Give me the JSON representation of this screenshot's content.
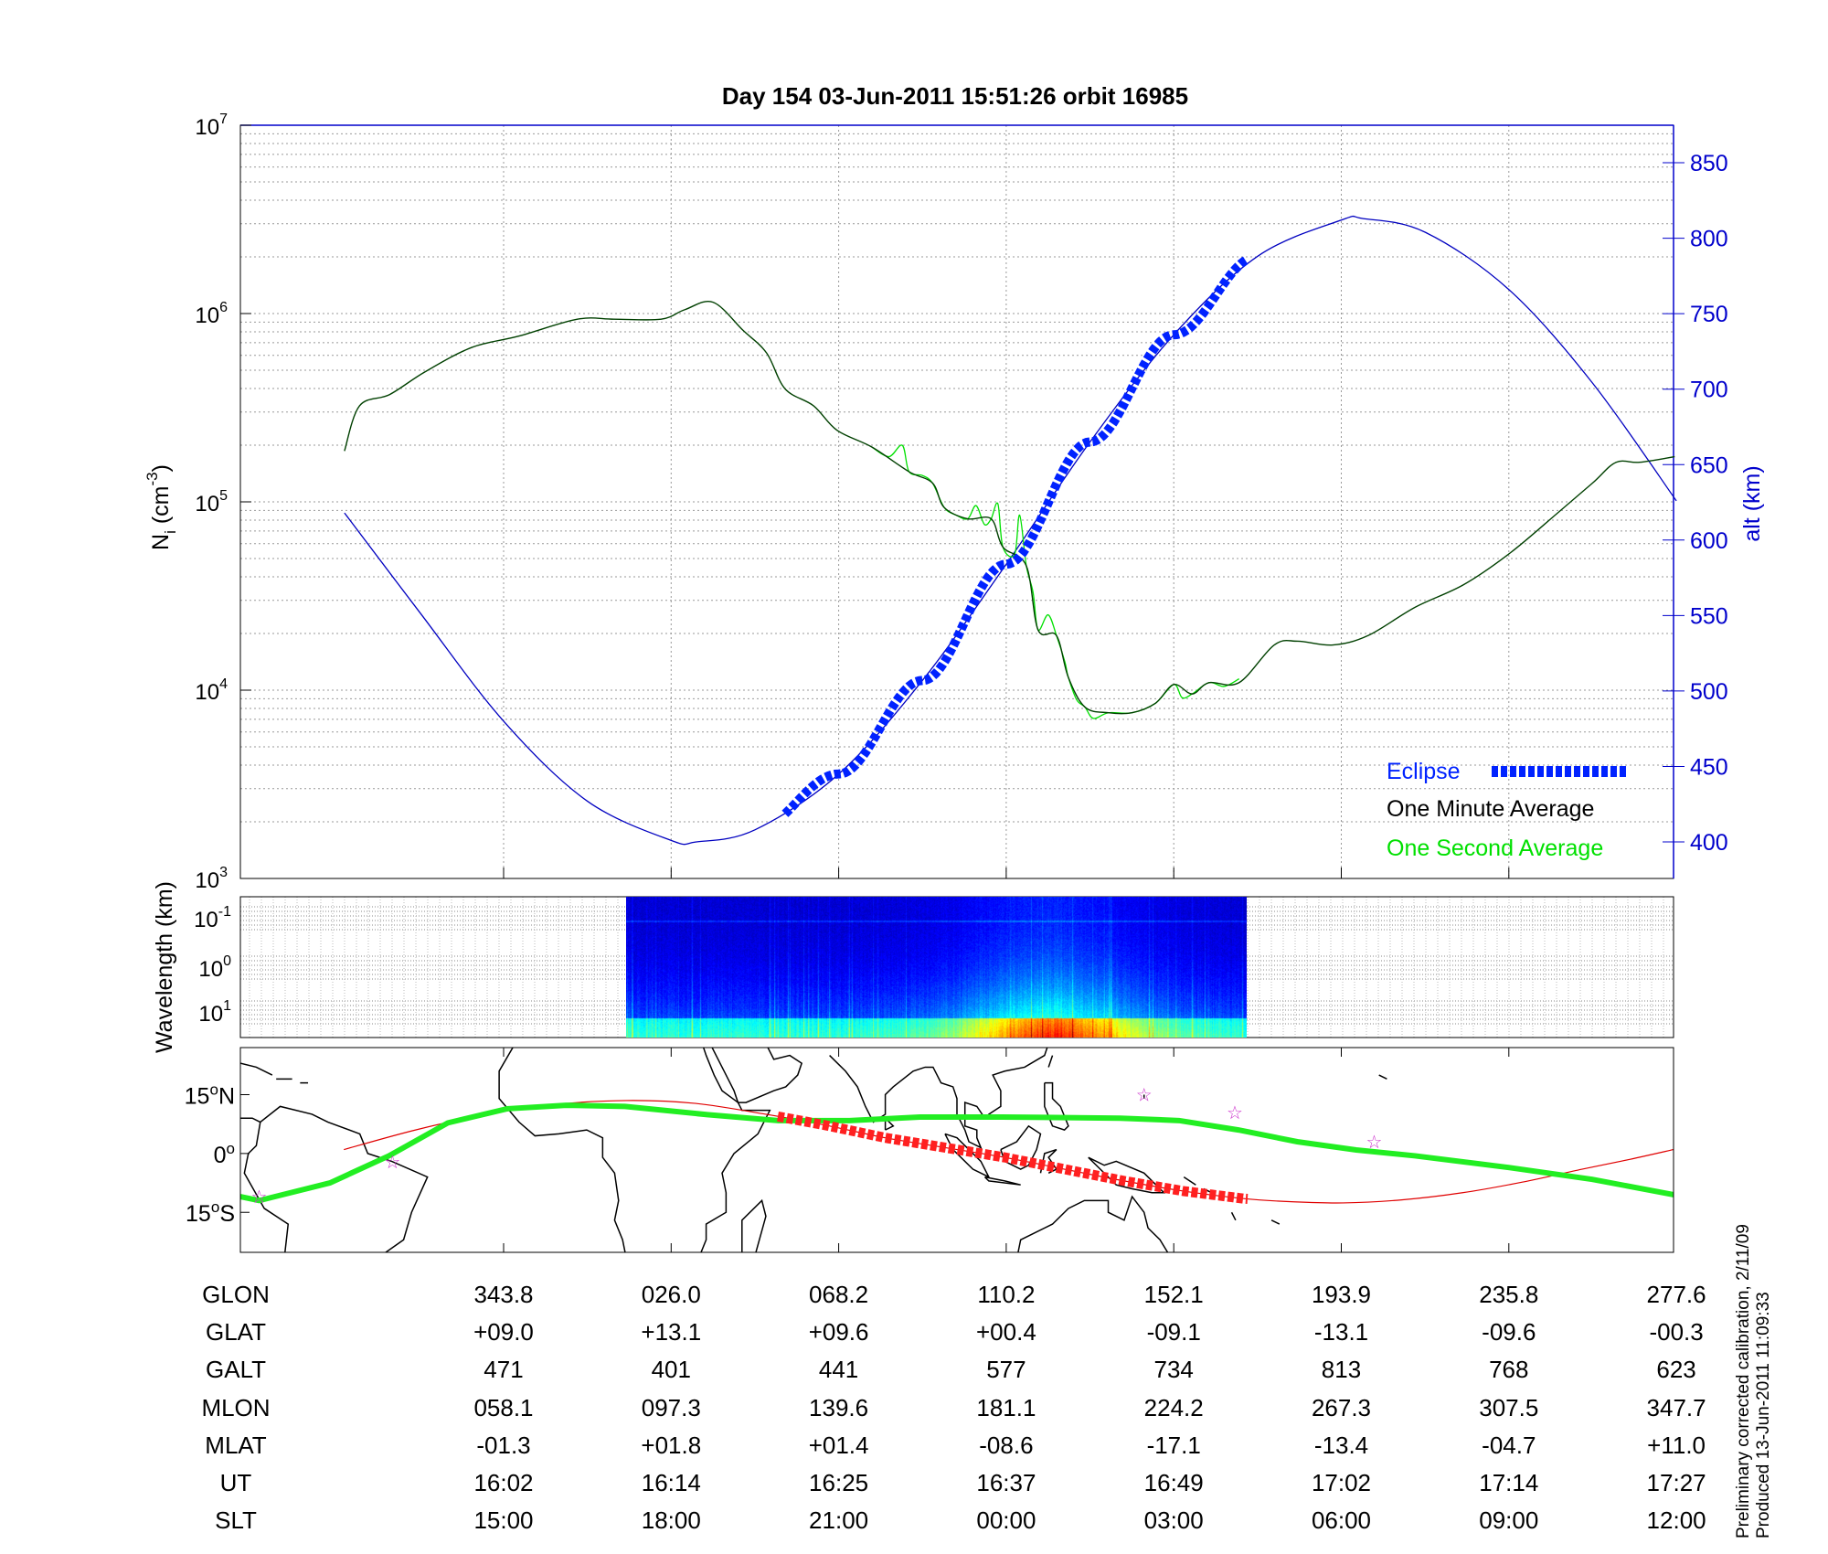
{
  "title": "Day 154  03-Jun-2011 15:51:26   orbit 16985",
  "footnote": {
    "line1": "Preliminary corrected calibration, 2/11/09",
    "line2": "Produced 13-Jun-2011 11:09:33"
  },
  "colors": {
    "one_minute": "#004000",
    "one_second": "#00e000",
    "altitude": "#0000c0",
    "eclipse": "#0022ff",
    "track": "#22ee22",
    "mag_equator": "#e00000",
    "eclipse_track": "#ff2020",
    "stars": "#cc33cc"
  },
  "chart_data": [
    {
      "type": "line",
      "name": "ion-density-altitude",
      "x_unit": "table column index (0 = first column of the GLON/UT table)",
      "xlim": [
        -1.57,
        7.0
      ],
      "ylabel": {
        "main": "N",
        "sub": "i",
        "unit_pre": " (cm",
        "unit_exp": "-3",
        "unit_post": ")"
      },
      "y_scale": "log",
      "ylim": [
        1000,
        10000000
      ],
      "y_ticks": [
        {
          "base": "10",
          "exp": "7"
        },
        {
          "base": "10",
          "exp": "6"
        },
        {
          "base": "10",
          "exp": "5"
        },
        {
          "base": "10",
          "exp": "4"
        },
        {
          "base": "10",
          "exp": "3"
        }
      ],
      "y2label": "alt (km)",
      "y2lim": [
        376,
        875
      ],
      "y2_ticks": [
        "850",
        "800",
        "750",
        "700",
        "650",
        "600",
        "550",
        "500",
        "450",
        "400"
      ],
      "grid": true,
      "legend": {
        "placement": "bottom-right",
        "entries": [
          "Eclipse",
          "One Minute Average",
          "One Second Average"
        ]
      },
      "series": [
        {
          "name": "One Minute Average",
          "axis": "left",
          "points": [
            [
              -0.95,
              5.27
            ],
            [
              -0.86,
              5.51
            ],
            [
              -0.68,
              5.57
            ],
            [
              -0.47,
              5.69
            ],
            [
              -0.19,
              5.82
            ],
            [
              0.09,
              5.88
            ],
            [
              0.44,
              5.97
            ],
            [
              0.66,
              5.97
            ],
            [
              0.94,
              5.97
            ],
            [
              1.08,
              6.02
            ],
            [
              1.25,
              6.06
            ],
            [
              1.43,
              5.91
            ],
            [
              1.57,
              5.79
            ],
            [
              1.68,
              5.6
            ],
            [
              1.85,
              5.51
            ],
            [
              1.99,
              5.38
            ],
            [
              2.2,
              5.29
            ],
            [
              2.42,
              5.16
            ],
            [
              2.56,
              5.1
            ],
            [
              2.63,
              4.97
            ],
            [
              2.77,
              4.91
            ],
            [
              2.91,
              4.91
            ],
            [
              2.98,
              4.76
            ],
            [
              3.12,
              4.66
            ],
            [
              3.19,
              4.32
            ],
            [
              3.3,
              4.29
            ],
            [
              3.37,
              4.07
            ],
            [
              3.47,
              3.91
            ],
            [
              3.61,
              3.88
            ],
            [
              3.75,
              3.88
            ],
            [
              3.89,
              3.93
            ],
            [
              4.0,
              4.03
            ],
            [
              4.11,
              3.98
            ],
            [
              4.21,
              4.04
            ],
            [
              4.39,
              4.04
            ],
            [
              4.6,
              4.24
            ],
            [
              4.74,
              4.26
            ],
            [
              4.95,
              4.24
            ],
            [
              5.16,
              4.29
            ],
            [
              5.44,
              4.44
            ],
            [
              5.73,
              4.56
            ],
            [
              6.01,
              4.73
            ],
            [
              6.29,
              4.94
            ],
            [
              6.5,
              5.1
            ],
            [
              6.64,
              5.21
            ],
            [
              6.78,
              5.21
            ],
            [
              6.99,
              5.24
            ]
          ],
          "value_format": "log10(Ni)"
        },
        {
          "name": "One Second Average",
          "axis": "left",
          "points": [
            [
              2.2,
              5.29
            ],
            [
              2.3,
              5.24
            ],
            [
              2.38,
              5.3
            ],
            [
              2.42,
              5.16
            ],
            [
              2.5,
              5.14
            ],
            [
              2.56,
              5.1
            ],
            [
              2.63,
              4.97
            ],
            [
              2.7,
              4.93
            ],
            [
              2.77,
              4.91
            ],
            [
              2.82,
              4.98
            ],
            [
              2.87,
              4.88
            ],
            [
              2.91,
              4.91
            ],
            [
              2.95,
              4.99
            ],
            [
              2.98,
              4.76
            ],
            [
              3.05,
              4.72
            ],
            [
              3.08,
              4.93
            ],
            [
              3.12,
              4.66
            ],
            [
              3.16,
              4.52
            ],
            [
              3.19,
              4.32
            ],
            [
              3.25,
              4.4
            ],
            [
              3.3,
              4.29
            ],
            [
              3.35,
              4.15
            ],
            [
              3.37,
              4.07
            ],
            [
              3.42,
              3.95
            ],
            [
              3.47,
              3.91
            ],
            [
              3.52,
              3.85
            ],
            [
              3.61,
              3.88
            ],
            [
              3.75,
              3.88
            ],
            [
              3.89,
              3.93
            ],
            [
              4.0,
              4.03
            ],
            [
              4.05,
              3.96
            ],
            [
              4.11,
              3.98
            ],
            [
              4.21,
              4.04
            ],
            [
              4.3,
              4.02
            ],
            [
              4.39,
              4.06
            ]
          ],
          "value_format": "log10(Ni)"
        },
        {
          "name": "Altitude",
          "axis": "right",
          "points": [
            [
              -0.95,
              618
            ],
            [
              -0.5,
              552
            ],
            [
              0,
              480
            ],
            [
              0.5,
              427
            ],
            [
              1,
              401
            ],
            [
              1.15,
              400
            ],
            [
              1.5,
              408
            ],
            [
              2,
              445
            ],
            [
              2.5,
              507
            ],
            [
              3,
              584
            ],
            [
              3.5,
              665
            ],
            [
              4,
              736
            ],
            [
              4.5,
              788
            ],
            [
              5,
              812
            ],
            [
              5.13,
              813
            ],
            [
              5.5,
              804
            ],
            [
              6,
              766
            ],
            [
              6.5,
              704
            ],
            [
              7,
              626
            ]
          ]
        },
        {
          "name": "Eclipse",
          "axis": "right",
          "x_range": [
            1.68,
            4.44
          ]
        }
      ]
    },
    {
      "type": "heatmap",
      "name": "wavelength-spectrogram",
      "ylabel": "Wavelength (km)",
      "y_ticks": [
        {
          "base": "10",
          "exp": "-1"
        },
        {
          "base": "10",
          "exp": "0"
        },
        {
          "base": "10",
          "exp": "1"
        }
      ],
      "x_range": [
        -0.73,
        2.98
      ],
      "colormap": "jet"
    },
    {
      "type": "line",
      "name": "ground-track-map",
      "xlim_lon": [
        -82,
        278
      ],
      "ylim_lat": [
        -25.2,
        27
      ],
      "y_ticks": [
        {
          "deg": "15",
          "sym": "o",
          "hemi": "N",
          "lat": 15
        },
        {
          "deg": "0",
          "sym": "o",
          "hemi": "",
          "lat": 0
        },
        {
          "deg": "15",
          "sym": "o",
          "hemi": "S",
          "lat": -15
        }
      ],
      "series": [
        {
          "name": "Ground Track",
          "points": [
            [
              -82,
              -11
            ],
            [
              -77.3,
              -12
            ],
            [
              -59.5,
              -7.5
            ],
            [
              -44.7,
              -0.6
            ],
            [
              -29.9,
              7.8
            ],
            [
              -15,
              11.4
            ],
            [
              -0.2,
              12.3
            ],
            [
              14.6,
              12
            ],
            [
              35.3,
              9.9
            ],
            [
              53.1,
              8.4
            ],
            [
              71,
              8.4
            ],
            [
              88.7,
              9.3
            ],
            [
              109.4,
              9.3
            ],
            [
              139,
              9
            ],
            [
              153.8,
              8.4
            ],
            [
              168.7,
              6
            ],
            [
              183.5,
              3
            ],
            [
              198.3,
              0.9
            ],
            [
              213.1,
              -0.6
            ],
            [
              236.8,
              -3.6
            ],
            [
              257.6,
              -6.6
            ],
            [
              278,
              -10.5
            ]
          ]
        },
        {
          "name": "Magnetic Equator",
          "points": [
            [
              -56,
              1
            ],
            [
              -38,
              6
            ],
            [
              -20,
              10
            ],
            [
              -3,
              12.5
            ],
            [
              15,
              13.5
            ],
            [
              32,
              12.8
            ],
            [
              50,
              10
            ],
            [
              65,
              7.2
            ],
            [
              80,
              4
            ],
            [
              95,
              1.5
            ],
            [
              110,
              -1
            ],
            [
              125,
              -4
            ],
            [
              140,
              -7
            ],
            [
              155,
              -9.6
            ],
            [
              170,
              -11.5
            ],
            [
              182,
              -12.3
            ],
            [
              195,
              -12.6
            ],
            [
              210,
              -11.8
            ],
            [
              225,
              -10
            ],
            [
              240,
              -7.3
            ],
            [
              255,
              -4
            ],
            [
              267,
              -1.5
            ],
            [
              278,
              1
            ]
          ]
        },
        {
          "name": "Eclipse Track",
          "lon_range": [
            53,
            171
          ]
        },
        {
          "name": "Stations",
          "points": [
            [
              -77.3,
              -11
            ],
            [
              -43.8,
              -2.1
            ],
            [
              145,
              15
            ],
            [
              167.8,
              10.5
            ],
            [
              202.8,
              3
            ]
          ]
        }
      ]
    }
  ],
  "table": {
    "rows": [
      {
        "label": "GLON",
        "values": [
          "343.8",
          "026.0",
          "068.2",
          "110.2",
          "152.1",
          "193.9",
          "235.8",
          "277.6"
        ]
      },
      {
        "label": "GLAT",
        "values": [
          "+09.0",
          "+13.1",
          "+09.6",
          "+00.4",
          "-09.1",
          "-13.1",
          "-09.6",
          "-00.3"
        ]
      },
      {
        "label": "GALT",
        "values": [
          "471",
          "401",
          "441",
          "577",
          "734",
          "813",
          "768",
          "623"
        ]
      },
      {
        "label": "MLON",
        "values": [
          "058.1",
          "097.3",
          "139.6",
          "181.1",
          "224.2",
          "267.3",
          "307.5",
          "347.7"
        ]
      },
      {
        "label": "MLAT",
        "values": [
          "-01.3",
          "+01.8",
          "+01.4",
          "-08.6",
          "-17.1",
          "-13.4",
          "-04.7",
          "+11.0"
        ]
      },
      {
        "label": "UT",
        "values": [
          "16:02",
          "16:14",
          "16:25",
          "16:37",
          "16:49",
          "17:02",
          "17:14",
          "17:27"
        ]
      },
      {
        "label": "SLT",
        "values": [
          "15:00",
          "18:00",
          "21:00",
          "00:00",
          "03:00",
          "06:00",
          "09:00",
          "12:00"
        ]
      }
    ]
  }
}
